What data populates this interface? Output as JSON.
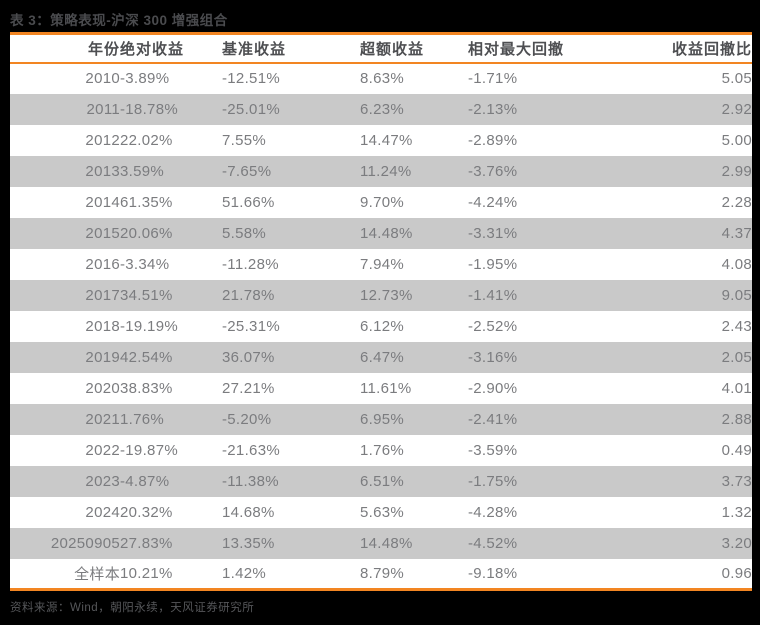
{
  "title": "表 3：策略表现-沪深 300 增强组合",
  "colors": {
    "page_background": "#000000",
    "accent_orange": "#F28522",
    "row_alt_gray": "#C9C9C9",
    "row_white": "#FFFFFF",
    "header_text": "#4E4F52",
    "cell_text": "#7B7C7F",
    "title_text": "#4A4B4E",
    "source_text": "#56575A"
  },
  "table": {
    "columns": [
      "年份",
      "绝对收益",
      "基准收益",
      "超额收益",
      "相对最大回撤",
      "收益回撤比"
    ],
    "rows": [
      [
        "2010",
        "-3.89%",
        "-12.51%",
        "8.63%",
        "-1.71%",
        "5.05"
      ],
      [
        "2011",
        "-18.78%",
        "-25.01%",
        "6.23%",
        "-2.13%",
        "2.92"
      ],
      [
        "2012",
        "22.02%",
        "7.55%",
        "14.47%",
        "-2.89%",
        "5.00"
      ],
      [
        "2013",
        "3.59%",
        "-7.65%",
        "11.24%",
        "-3.76%",
        "2.99"
      ],
      [
        "2014",
        "61.35%",
        "51.66%",
        "9.70%",
        "-4.24%",
        "2.28"
      ],
      [
        "2015",
        "20.06%",
        "5.58%",
        "14.48%",
        "-3.31%",
        "4.37"
      ],
      [
        "2016",
        "-3.34%",
        "-11.28%",
        "7.94%",
        "-1.95%",
        "4.08"
      ],
      [
        "2017",
        "34.51%",
        "21.78%",
        "12.73%",
        "-1.41%",
        "9.05"
      ],
      [
        "2018",
        "-19.19%",
        "-25.31%",
        "6.12%",
        "-2.52%",
        "2.43"
      ],
      [
        "2019",
        "42.54%",
        "36.07%",
        "6.47%",
        "-3.16%",
        "2.05"
      ],
      [
        "2020",
        "38.83%",
        "27.21%",
        "11.61%",
        "-2.90%",
        "4.01"
      ],
      [
        "2021",
        "1.76%",
        "-5.20%",
        "6.95%",
        "-2.41%",
        "2.88"
      ],
      [
        "2022",
        "-19.87%",
        "-21.63%",
        "1.76%",
        "-3.59%",
        "0.49"
      ],
      [
        "2023",
        "-4.87%",
        "-11.38%",
        "6.51%",
        "-1.75%",
        "3.73"
      ],
      [
        "2024",
        "20.32%",
        "14.68%",
        "5.63%",
        "-4.28%",
        "1.32"
      ],
      [
        "20250905",
        "27.83%",
        "13.35%",
        "14.48%",
        "-4.52%",
        "3.20"
      ],
      [
        "全样本",
        "10.21%",
        "1.42%",
        "8.79%",
        "-9.18%",
        "0.96"
      ]
    ]
  },
  "footer": {
    "source": "资料来源：Wind，朝阳永续，天风证券研究所"
  }
}
